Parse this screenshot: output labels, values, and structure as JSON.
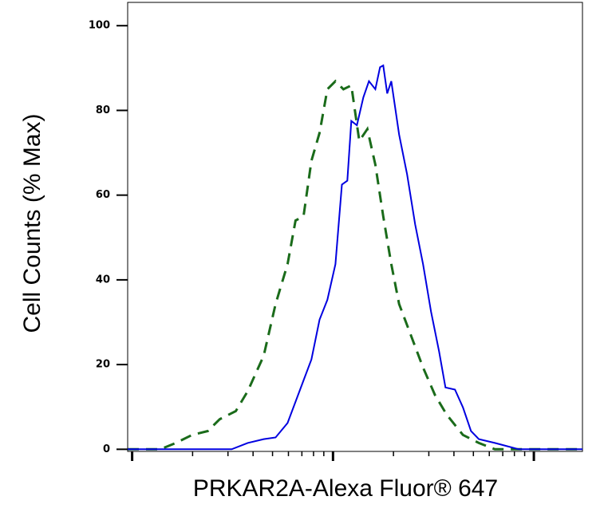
{
  "chart_data": {
    "type": "line",
    "x_label": "PRKAR2A-Alexa Fluor® 647",
    "y_label": "Cell Counts (% Max)",
    "x_scale": "log",
    "xlim": [
      95,
      17458
    ],
    "ylim": [
      -0.5,
      105.5
    ],
    "xticks": [
      100,
      1000,
      10000
    ],
    "xminorticks": [
      200,
      300,
      400,
      500,
      600,
      700,
      800,
      900,
      2000,
      3000,
      4000,
      5000,
      6000,
      7000,
      8000,
      9000
    ],
    "yticks": [
      0,
      20,
      40,
      60,
      80,
      100
    ],
    "series": [
      {
        "color": "#0000e0",
        "dash": "solid",
        "x": [
          95,
          313,
          376,
          452,
          518,
          594,
          681,
          781,
          857,
          938,
          1028,
          1107,
          1178,
          1234,
          1315,
          1416,
          1510,
          1624,
          1715,
          1778,
          1862,
          1950,
          2134,
          2339,
          2564,
          2808,
          3076,
          3373,
          3631,
          4046,
          4436,
          4864,
          5321,
          6397,
          8414,
          17458
        ],
        "values": [
          0,
          0,
          1.5,
          2.4,
          2.8,
          6.2,
          13.7,
          21.2,
          30.6,
          35.3,
          43.7,
          62.5,
          63.4,
          77.5,
          76.5,
          83.1,
          86.9,
          85,
          90.2,
          90.6,
          84,
          86.9,
          74.3,
          64.9,
          53.1,
          43.7,
          32.5,
          23.1,
          14.6,
          14.1,
          9.9,
          4.3,
          2.4,
          1.5,
          0,
          0
        ]
      },
      {
        "color": "#1a6b1a",
        "dash": "dashed",
        "x": [
          95,
          138,
          165,
          199,
          238,
          273,
          328,
          376,
          452,
          518,
          594,
          651,
          713,
          781,
          857,
          938,
          1028,
          1127,
          1234,
          1352,
          1482,
          1624,
          1778,
          1950,
          2134,
          2448,
          2808,
          3221,
          3690,
          4436,
          5321,
          6397,
          17458
        ],
        "values": [
          0,
          0,
          1.5,
          3.4,
          4.3,
          7.1,
          9,
          13.7,
          22.1,
          34.3,
          43.7,
          54,
          55,
          68.1,
          74.7,
          85,
          86.9,
          85,
          85.9,
          72.8,
          75.6,
          67.2,
          55,
          43.7,
          34.3,
          26.8,
          19.3,
          12.8,
          8.1,
          3.4,
          1.5,
          0,
          0
        ]
      }
    ]
  }
}
